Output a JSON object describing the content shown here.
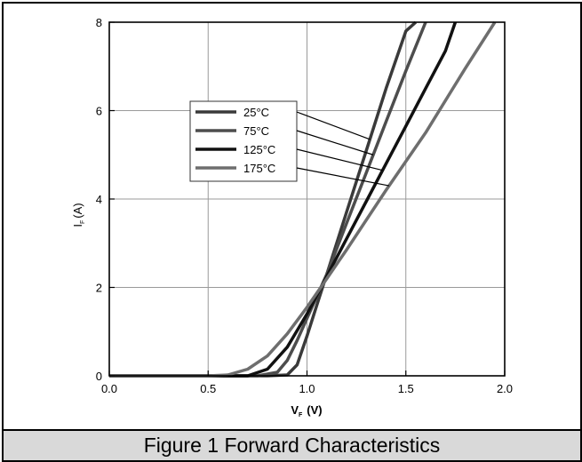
{
  "figure_caption": "Figure 1 Forward Characteristics",
  "chart_data": {
    "type": "line",
    "title": "",
    "xlabel_main": "V",
    "xlabel_sub": "F",
    "xlabel_unit": "(V)",
    "ylabel_main": "I",
    "ylabel_sub": "F",
    "ylabel_unit": "(A)",
    "xlim": [
      0.0,
      2.0
    ],
    "ylim": [
      0,
      8
    ],
    "x_ticks": [
      "0.0",
      "0.5",
      "1.0",
      "1.5",
      "2.0"
    ],
    "y_ticks": [
      "0",
      "2",
      "4",
      "6",
      "8"
    ],
    "grid": true,
    "legend_position": "upper-left-inside",
    "series": [
      {
        "name": "25°C",
        "color": "#3a3a3a",
        "x": [
          0.7,
          0.8,
          0.9,
          0.95,
          1.0,
          1.05,
          1.1,
          1.2,
          1.3,
          1.4,
          1.5,
          1.55
        ],
        "y": [
          0.0,
          0.0,
          0.02,
          0.25,
          0.9,
          1.6,
          2.3,
          3.7,
          5.1,
          6.5,
          7.8,
          8.0
        ]
      },
      {
        "name": "75°C",
        "color": "#4d4d4d",
        "x": [
          0.65,
          0.75,
          0.85,
          0.9,
          0.95,
          1.0,
          1.1,
          1.2,
          1.3,
          1.4,
          1.5,
          1.6
        ],
        "y": [
          0.0,
          0.0,
          0.08,
          0.35,
          0.8,
          1.3,
          2.3,
          3.45,
          4.6,
          5.75,
          6.9,
          8.0
        ]
      },
      {
        "name": "125°C",
        "color": "#111111",
        "x": [
          0.6,
          0.7,
          0.8,
          0.9,
          1.0,
          1.1,
          1.2,
          1.3,
          1.4,
          1.5,
          1.6,
          1.7,
          1.75
        ],
        "y": [
          0.0,
          0.0,
          0.15,
          0.65,
          1.4,
          2.25,
          3.1,
          3.95,
          4.8,
          5.65,
          6.5,
          7.35,
          8.0
        ]
      },
      {
        "name": "175°C",
        "color": "#6e6e6e",
        "x": [
          0.5,
          0.6,
          0.7,
          0.8,
          0.9,
          1.0,
          1.1,
          1.2,
          1.4,
          1.6,
          1.8,
          1.95
        ],
        "y": [
          0.0,
          0.02,
          0.15,
          0.45,
          0.95,
          1.55,
          2.2,
          2.85,
          4.2,
          5.5,
          6.95,
          8.0
        ]
      }
    ]
  }
}
